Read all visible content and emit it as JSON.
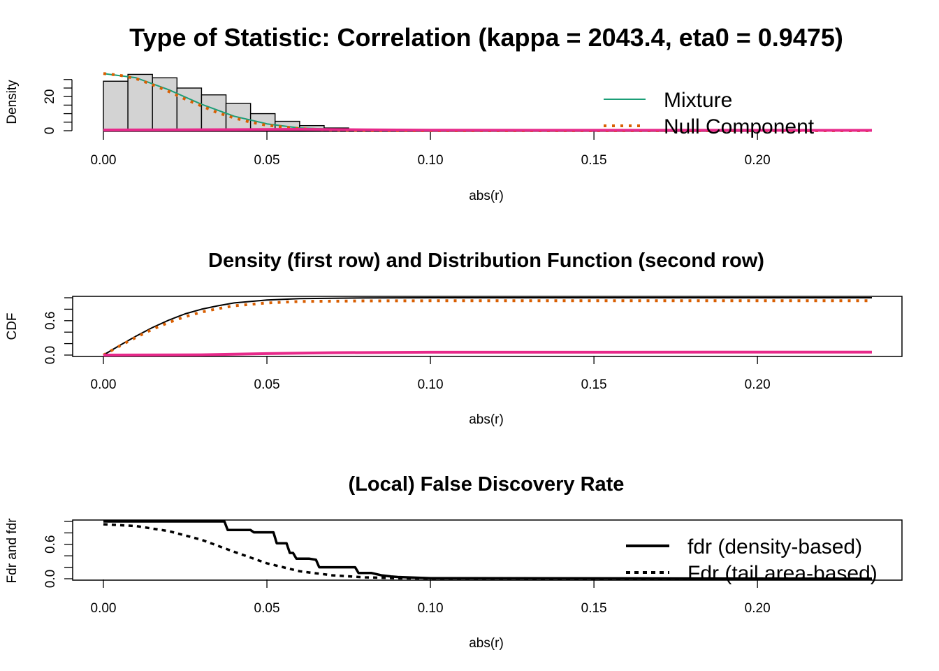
{
  "chart_data": [
    {
      "type": "bar",
      "title": "Type of Statistic: Correlation (kappa = 2043.4, eta0 = 0.9475)",
      "xlabel": "abs(r)",
      "ylabel": "Density",
      "xlim": [
        0,
        0.235
      ],
      "ylim": [
        0,
        34
      ],
      "xticks": [
        "0.00",
        "0.05",
        "0.10",
        "0.15",
        "0.20"
      ],
      "yticks": [
        "0",
        "20"
      ],
      "histogram": {
        "bin_width": 0.0075,
        "bin_starts": [
          0,
          0.0075,
          0.015,
          0.0225,
          0.03,
          0.0375,
          0.045,
          0.0525,
          0.06,
          0.0675,
          0.075,
          0.0825,
          0.09,
          0.0975,
          0.105
        ],
        "values": [
          29,
          33,
          31,
          25,
          21,
          16,
          10,
          5.5,
          3,
          1.6,
          0.8,
          0.4,
          0.2,
          0.1,
          0.05
        ]
      },
      "series": [
        {
          "name": "Mixture",
          "color": "#1b9e77",
          "style": "solid",
          "x": [
            0,
            0.01,
            0.02,
            0.03,
            0.04,
            0.05,
            0.06,
            0.08,
            0.1,
            0.235
          ],
          "y": [
            33.5,
            31,
            24,
            15.5,
            8.5,
            4,
            1.6,
            0.3,
            0.05,
            0
          ]
        },
        {
          "name": "Null Component",
          "color": "#d95f02",
          "style": "dotted",
          "x": [
            0,
            0.005,
            0.01,
            0.015,
            0.02,
            0.025,
            0.03,
            0.035,
            0.04,
            0.045,
            0.05,
            0.06,
            0.07,
            0.08,
            0.1,
            0.235
          ],
          "y": [
            33.5,
            32.5,
            30.5,
            27,
            23,
            18.5,
            14.5,
            10.5,
            7.5,
            5,
            3.2,
            1.2,
            0.4,
            0.1,
            0,
            0
          ]
        },
        {
          "color": "#e7298a",
          "style": "solid",
          "x": [
            0,
            0.04,
            0.06,
            0.08,
            0.1,
            0.235
          ],
          "y": [
            0.4,
            0.6,
            0.8,
            0.5,
            0.3,
            0.2
          ]
        }
      ],
      "legend": {
        "position": "top-right",
        "entries": [
          "Mixture",
          "Null Component"
        ]
      }
    },
    {
      "type": "line",
      "title": "Density (first row) and Distribution Function (second row)",
      "xlabel": "abs(r)",
      "ylabel": "CDF",
      "xlim": [
        0,
        0.235
      ],
      "ylim": [
        0,
        1
      ],
      "xticks": [
        "0.00",
        "0.05",
        "0.10",
        "0.15",
        "0.20"
      ],
      "yticks": [
        "0.0",
        "0.6"
      ],
      "series": [
        {
          "color": "#000000",
          "style": "solid",
          "x": [
            0,
            0.005,
            0.01,
            0.015,
            0.02,
            0.025,
            0.03,
            0.035,
            0.04,
            0.05,
            0.06,
            0.08,
            0.1,
            0.235
          ],
          "y": [
            0,
            0.17,
            0.33,
            0.48,
            0.61,
            0.72,
            0.8,
            0.86,
            0.91,
            0.96,
            0.985,
            0.998,
            1,
            1
          ]
        },
        {
          "color": "#d95f02",
          "style": "dotted",
          "x": [
            0,
            0.005,
            0.01,
            0.015,
            0.02,
            0.025,
            0.03,
            0.035,
            0.04,
            0.05,
            0.06,
            0.08,
            0.1,
            0.235
          ],
          "y": [
            0,
            0.16,
            0.31,
            0.45,
            0.57,
            0.67,
            0.75,
            0.81,
            0.86,
            0.91,
            0.935,
            0.945,
            0.9475,
            0.9475
          ]
        },
        {
          "color": "#e7298a",
          "style": "solid",
          "x": [
            0,
            0.03,
            0.05,
            0.07,
            0.1,
            0.235
          ],
          "y": [
            0,
            0.005,
            0.025,
            0.042,
            0.05,
            0.0525
          ]
        }
      ]
    },
    {
      "type": "line",
      "title": "(Local) False Discovery Rate",
      "xlabel": "abs(r)",
      "ylabel": "Fdr and fdr",
      "xlim": [
        0,
        0.235
      ],
      "ylim": [
        0,
        1
      ],
      "xticks": [
        "0.00",
        "0.05",
        "0.10",
        "0.15",
        "0.20"
      ],
      "yticks": [
        "0.0",
        "0.6"
      ],
      "series": [
        {
          "name": "fdr (density-based)",
          "color": "#000000",
          "style": "solid",
          "x": [
            0,
            0.037,
            0.038,
            0.045,
            0.046,
            0.052,
            0.053,
            0.056,
            0.057,
            0.058,
            0.059,
            0.063,
            0.065,
            0.066,
            0.07,
            0.077,
            0.078,
            0.082,
            0.085,
            0.088,
            0.09,
            0.095,
            0.1,
            0.235
          ],
          "y": [
            1.0,
            1.0,
            0.85,
            0.85,
            0.81,
            0.81,
            0.62,
            0.62,
            0.45,
            0.45,
            0.35,
            0.35,
            0.33,
            0.2,
            0.2,
            0.2,
            0.1,
            0.1,
            0.06,
            0.04,
            0.03,
            0.02,
            0.01,
            0.0
          ]
        },
        {
          "name": "Fdr (tail area-based)",
          "color": "#000000",
          "style": "dashed",
          "x": [
            0,
            0.01,
            0.02,
            0.03,
            0.04,
            0.05,
            0.06,
            0.07,
            0.08,
            0.09,
            0.1,
            0.235
          ],
          "y": [
            0.95,
            0.92,
            0.83,
            0.68,
            0.47,
            0.27,
            0.13,
            0.06,
            0.025,
            0.01,
            0.005,
            0.0
          ]
        }
      ],
      "legend": {
        "position": "top-right",
        "entries": [
          "fdr (density-based)",
          "Fdr (tail area-based)"
        ]
      }
    }
  ]
}
